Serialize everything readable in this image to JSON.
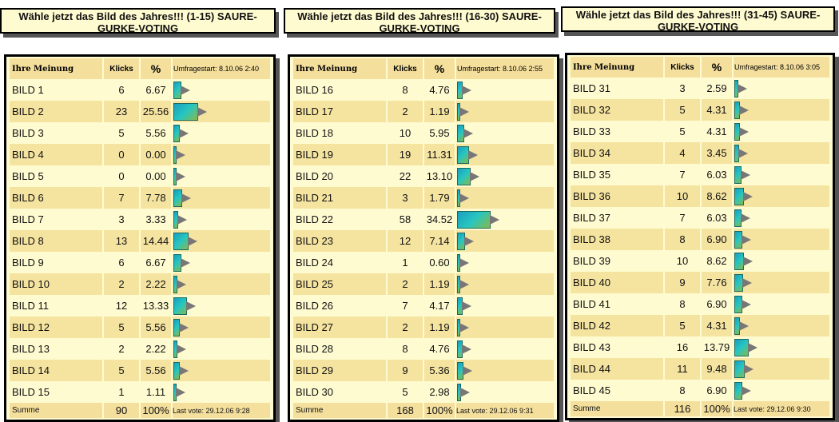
{
  "columns": {
    "name": "Ihre Meinung",
    "klicks": "Klicks",
    "pct": "%",
    "sum": "Summe"
  },
  "polls": [
    {
      "title": "Wähle jetzt das Bild des Jahres!!! (1-15) SAURE-GURKE-VOTING",
      "start": "Umfragestart: 8.10.06 2:40",
      "total": "90",
      "total_pct": "100%",
      "last_vote": "Last vote: 29.12.06 9:28",
      "rows": [
        [
          "BILD 1",
          "6",
          "6.67"
        ],
        [
          "BILD 2",
          "23",
          "25.56"
        ],
        [
          "BILD 3",
          "5",
          "5.56"
        ],
        [
          "BILD 4",
          "0",
          "0.00"
        ],
        [
          "BILD 5",
          "0",
          "0.00"
        ],
        [
          "BILD 6",
          "7",
          "7.78"
        ],
        [
          "BILD 7",
          "3",
          "3.33"
        ],
        [
          "BILD 8",
          "13",
          "14.44"
        ],
        [
          "BILD 9",
          "6",
          "6.67"
        ],
        [
          "BILD 10",
          "2",
          "2.22"
        ],
        [
          "BILD 11",
          "12",
          "13.33"
        ],
        [
          "BILD 12",
          "5",
          "5.56"
        ],
        [
          "BILD 13",
          "2",
          "2.22"
        ],
        [
          "BILD 14",
          "5",
          "5.56"
        ],
        [
          "BILD 15",
          "1",
          "1.11"
        ]
      ]
    },
    {
      "title": "Wähle jetzt das Bild des Jahres!!! (16-30) SAURE-GURKE-VOTING",
      "start": "Umfragestart: 8.10.06 2:55",
      "total": "168",
      "total_pct": "100%",
      "last_vote": "Last vote: 29.12.06 9:31",
      "rows": [
        [
          "BILD 16",
          "8",
          "4.76"
        ],
        [
          "BILD 17",
          "2",
          "1.19"
        ],
        [
          "BILD 18",
          "10",
          "5.95"
        ],
        [
          "BILD 19",
          "19",
          "11.31"
        ],
        [
          "BILD 20",
          "22",
          "13.10"
        ],
        [
          "BILD 21",
          "3",
          "1.79"
        ],
        [
          "BILD 22",
          "58",
          "34.52"
        ],
        [
          "BILD 23",
          "12",
          "7.14"
        ],
        [
          "BILD 24",
          "1",
          "0.60"
        ],
        [
          "BILD 25",
          "2",
          "1.19"
        ],
        [
          "BILD 26",
          "7",
          "4.17"
        ],
        [
          "BILD 27",
          "2",
          "1.19"
        ],
        [
          "BILD 28",
          "8",
          "4.76"
        ],
        [
          "BILD 29",
          "9",
          "5.36"
        ],
        [
          "BILD 30",
          "5",
          "2.98"
        ]
      ]
    },
    {
      "title": "Wähle jetzt das Bild des Jahres!!! (31-45) SAURE-GURKE-VOTING",
      "start": "Umfragestart: 8.10.06 3:05",
      "total": "116",
      "total_pct": "100%",
      "last_vote": "Last vote: 29.12.06 9:30",
      "rows": [
        [
          "BILD 31",
          "3",
          "2.59"
        ],
        [
          "BILD 32",
          "5",
          "4.31"
        ],
        [
          "BILD 33",
          "5",
          "4.31"
        ],
        [
          "BILD 34",
          "4",
          "3.45"
        ],
        [
          "BILD 35",
          "7",
          "6.03"
        ],
        [
          "BILD 36",
          "10",
          "8.62"
        ],
        [
          "BILD 37",
          "7",
          "6.03"
        ],
        [
          "BILD 38",
          "8",
          "6.90"
        ],
        [
          "BILD 39",
          "10",
          "8.62"
        ],
        [
          "BILD 40",
          "9",
          "7.76"
        ],
        [
          "BILD 41",
          "8",
          "6.90"
        ],
        [
          "BILD 42",
          "5",
          "4.31"
        ],
        [
          "BILD 43",
          "16",
          "13.79"
        ],
        [
          "BILD 44",
          "11",
          "9.48"
        ],
        [
          "BILD 45",
          "8",
          "6.90"
        ]
      ]
    }
  ]
}
